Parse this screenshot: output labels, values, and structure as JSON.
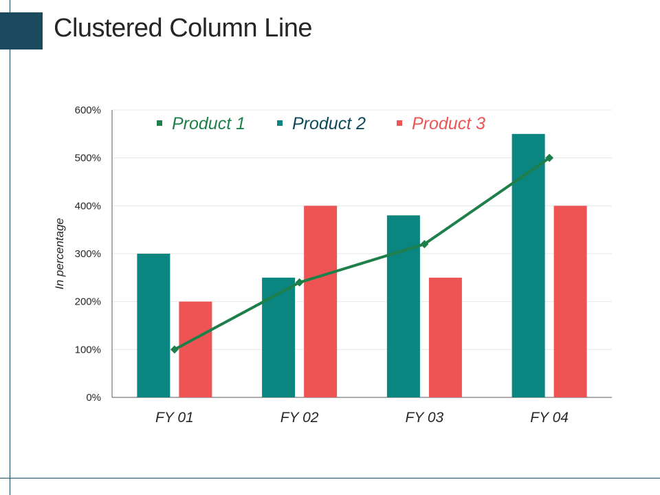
{
  "slide": {
    "title": "Clustered Column Line"
  },
  "colors": {
    "accent": "#1b4a5e",
    "product1": "#1e7f4b",
    "product2": "#0a8580",
    "product3": "#ef5455",
    "product2_legend_text": "#0c4a5a"
  },
  "chart_data": {
    "type": "bar",
    "combo": "clustered-column-line",
    "categories": [
      "FY 01",
      "FY 02",
      "FY 03",
      "FY 04"
    ],
    "ylabel": "In percentage",
    "xlabel": "",
    "ylim": [
      0,
      600
    ],
    "yticks": [
      0,
      100,
      200,
      300,
      400,
      500,
      600
    ],
    "ytick_labels": [
      "0%",
      "100%",
      "200%",
      "300%",
      "400%",
      "500%",
      "600%"
    ],
    "grid": true,
    "legend_position": "top",
    "series": [
      {
        "name": "Product 1",
        "type": "line",
        "values": [
          100,
          240,
          320,
          500
        ]
      },
      {
        "name": "Product 2",
        "type": "bar",
        "values": [
          300,
          250,
          380,
          550
        ]
      },
      {
        "name": "Product 3",
        "type": "bar",
        "values": [
          200,
          400,
          250,
          400
        ]
      }
    ]
  }
}
